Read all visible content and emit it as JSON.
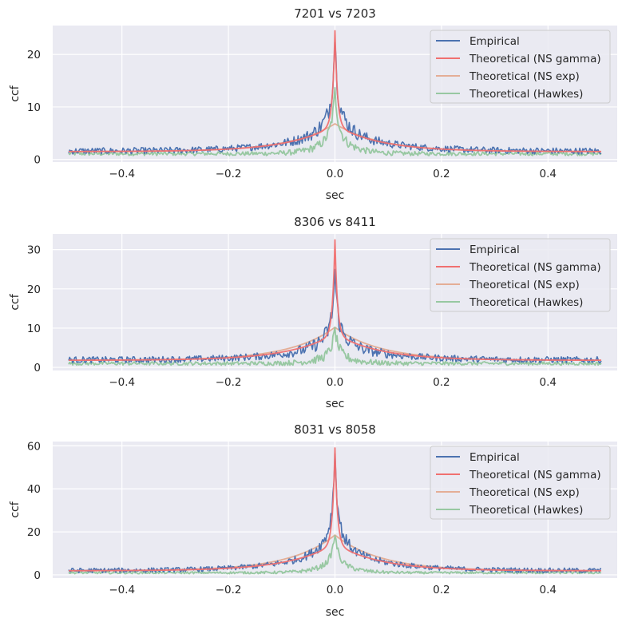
{
  "colors": {
    "background": "#eaeaf2",
    "grid": "#ffffff",
    "empirical": "#4c72b0",
    "ns_gamma": "#f07070",
    "ns_exp": "#e4ae96",
    "hawkes": "#98c8a2"
  },
  "chart_data": [
    {
      "type": "line",
      "title": "7201 vs 7203",
      "xlabel": "sec",
      "ylabel": "ccf",
      "xlim": [
        -0.53,
        0.53
      ],
      "ylim": [
        -0.5,
        25.5
      ],
      "xticks": [
        -0.4,
        -0.2,
        0.0,
        0.2,
        0.4
      ],
      "xtick_labels": [
        "−0.4",
        "−0.2",
        "0.0",
        "0.2",
        "0.4"
      ],
      "yticks": [
        0,
        10,
        20
      ],
      "grid": true,
      "legend_position": "top-right",
      "x_range": [
        -0.5,
        0.5
      ],
      "series": [
        {
          "name": "Empirical",
          "kind": "empirical",
          "baseline": 1.6,
          "peak": 23.5,
          "noise": 0.6
        },
        {
          "name": "Theoretical (NS gamma)",
          "kind": "gamma",
          "baseline": 1.5,
          "peak": 24.5
        },
        {
          "name": "Theoretical (NS exp)",
          "kind": "exp",
          "baseline": 1.5,
          "peak": 6.8
        },
        {
          "name": "Theoretical (Hawkes)",
          "kind": "hawkes",
          "baseline": 1.1,
          "peak": 13.0,
          "noise": 0.35
        }
      ]
    },
    {
      "type": "line",
      "title": "8306 vs 8411",
      "xlabel": "sec",
      "ylabel": "ccf",
      "xlim": [
        -0.53,
        0.53
      ],
      "ylim": [
        -0.8,
        34.0
      ],
      "xticks": [
        -0.4,
        -0.2,
        0.0,
        0.2,
        0.4
      ],
      "xtick_labels": [
        "−0.4",
        "−0.2",
        "0.0",
        "0.2",
        "0.4"
      ],
      "yticks": [
        0,
        10,
        20,
        30
      ],
      "grid": true,
      "legend_position": "top-right",
      "x_range": [
        -0.5,
        0.5
      ],
      "series": [
        {
          "name": "Empirical",
          "kind": "empirical",
          "baseline": 1.9,
          "peak": 24.5,
          "noise": 0.8
        },
        {
          "name": "Theoretical (NS gamma)",
          "kind": "gamma",
          "baseline": 1.8,
          "peak": 32.5
        },
        {
          "name": "Theoretical (NS exp)",
          "kind": "exp",
          "baseline": 1.8,
          "peak": 10.2
        },
        {
          "name": "Theoretical (Hawkes)",
          "kind": "hawkes",
          "baseline": 1.0,
          "peak": 9.5,
          "noise": 0.45
        }
      ]
    },
    {
      "type": "line",
      "title": "8031 vs 8058",
      "xlabel": "sec",
      "ylabel": "ccf",
      "xlim": [
        -0.53,
        0.53
      ],
      "ylim": [
        -1.5,
        62.0
      ],
      "xticks": [
        -0.4,
        -0.2,
        0.0,
        0.2,
        0.4
      ],
      "xtick_labels": [
        "−0.4",
        "−0.2",
        "0.0",
        "0.2",
        "0.4"
      ],
      "yticks": [
        0,
        20,
        40,
        60
      ],
      "grid": true,
      "legend_position": "top-right",
      "x_range": [
        -0.5,
        0.5
      ],
      "series": [
        {
          "name": "Empirical",
          "kind": "empirical",
          "baseline": 2.0,
          "peak": 57.0,
          "noise": 1.1
        },
        {
          "name": "Theoretical (NS gamma)",
          "kind": "gamma",
          "baseline": 1.9,
          "peak": 59.0
        },
        {
          "name": "Theoretical (NS exp)",
          "kind": "exp",
          "baseline": 1.9,
          "peak": 18.5
        },
        {
          "name": "Theoretical (Hawkes)",
          "kind": "hawkes",
          "baseline": 1.0,
          "peak": 19.0,
          "noise": 0.5
        }
      ]
    }
  ]
}
